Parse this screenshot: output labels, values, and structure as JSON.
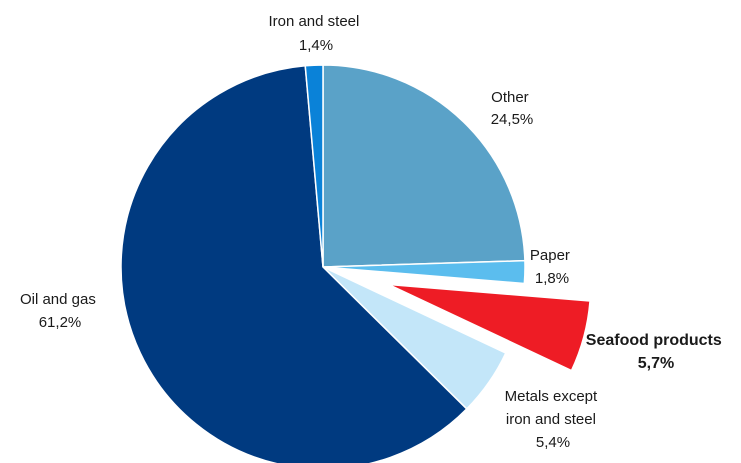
{
  "chart_data": {
    "type": "pie",
    "title": "",
    "start_angle_deg": 0,
    "direction": "clockwise",
    "slices": [
      {
        "key": "other",
        "label_lines": [
          "Other",
          "24,5%"
        ],
        "value": 24.5,
        "color": "#5aa2c8",
        "exploded": false,
        "bold": false
      },
      {
        "key": "paper",
        "label_lines": [
          "Paper",
          "1,8%"
        ],
        "value": 1.8,
        "color": "#5bbdee",
        "exploded": false,
        "bold": false
      },
      {
        "key": "seafood",
        "label_lines": [
          "Seafood products",
          "5,7%"
        ],
        "value": 5.7,
        "color": "#ee1c25",
        "exploded": true,
        "bold": true
      },
      {
        "key": "metals",
        "label_lines": [
          "Metals except",
          "iron and steel",
          "5,4%"
        ],
        "value": 5.4,
        "color": "#c3e6f9",
        "exploded": false,
        "bold": false
      },
      {
        "key": "oilgas",
        "label_lines": [
          "Oil and gas",
          "61,2%"
        ],
        "value": 61.2,
        "color": "#003a80",
        "exploded": false,
        "bold": false
      },
      {
        "key": "iron",
        "label_lines": [
          "Iron and steel",
          "1,4%"
        ],
        "value": 1.4,
        "color": "#0a82d8",
        "exploded": false,
        "bold": false
      }
    ]
  }
}
